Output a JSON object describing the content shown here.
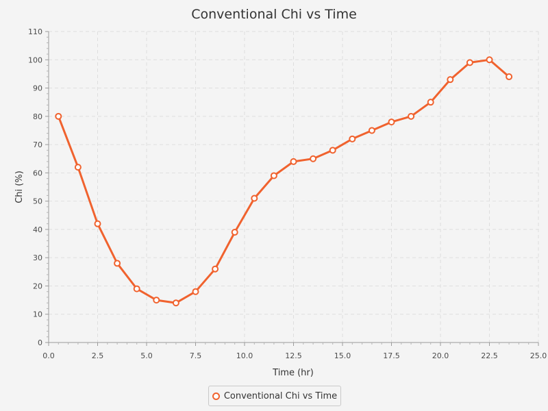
{
  "chart_data": {
    "type": "line",
    "title": "Conventional Chi vs Time",
    "xlabel": "Time (hr)",
    "ylabel": "Chi (%)",
    "xlim": [
      0,
      25
    ],
    "ylim": [
      0,
      110
    ],
    "x_ticks": [
      "0.0",
      "2.5",
      "5.0",
      "7.5",
      "10.0",
      "12.5",
      "15.0",
      "17.5",
      "20.0",
      "22.5",
      "25.0"
    ],
    "y_ticks": [
      "0",
      "10",
      "20",
      "30",
      "40",
      "50",
      "60",
      "70",
      "80",
      "90",
      "100",
      "110"
    ],
    "grid": true,
    "legend_position": "bottom",
    "series": [
      {
        "name": "Conventional Chi vs Time",
        "color": "#f0622e",
        "x": [
          0.5,
          1.5,
          2.5,
          3.5,
          4.5,
          5.5,
          6.5,
          7.5,
          8.5,
          9.5,
          10.5,
          11.5,
          12.5,
          13.5,
          14.5,
          15.5,
          16.5,
          17.5,
          18.5,
          19.5,
          20.5,
          21.5,
          22.5,
          23.5
        ],
        "y": [
          80,
          62,
          42,
          28,
          19,
          15,
          14,
          18,
          26,
          39,
          51,
          59,
          64,
          65,
          68,
          72,
          75,
          78,
          80,
          85,
          93,
          99,
          100,
          94
        ]
      }
    ]
  }
}
